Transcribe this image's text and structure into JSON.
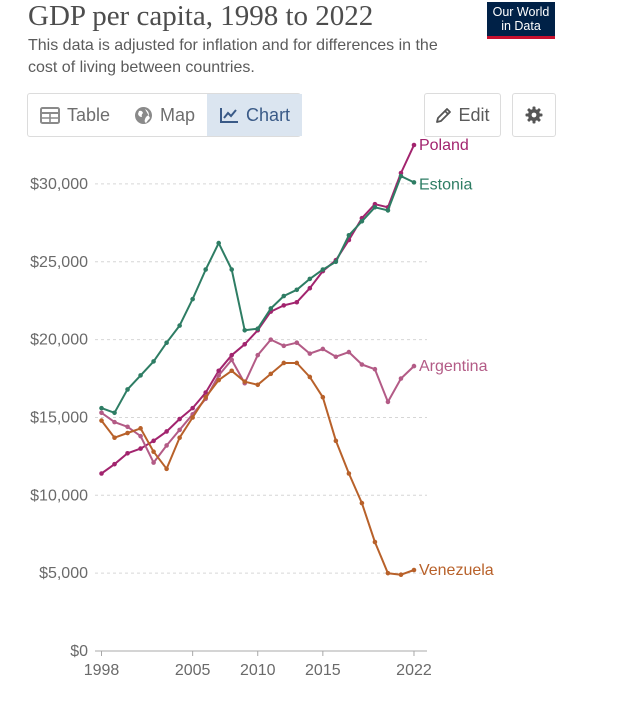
{
  "header": {
    "title": "GDP per capita, 1998 to 2022",
    "subtitle": "This data is adjusted for inflation and for differences in the cost of living between countries.",
    "logo_line1": "Our World",
    "logo_line2": "in Data"
  },
  "tabs": [
    {
      "label": "Table",
      "icon": "table-icon",
      "active": false
    },
    {
      "label": "Map",
      "icon": "globe-icon",
      "active": false
    },
    {
      "label": "Chart",
      "icon": "line-chart-icon",
      "active": true
    }
  ],
  "toolbar": {
    "edit_label": "Edit",
    "settings_icon": "gear-icon"
  },
  "chart_data": {
    "type": "line",
    "title": "GDP per capita, 1998 to 2022",
    "xlabel": "",
    "ylabel": "",
    "xlim": [
      1997.5,
      2023
    ],
    "ylim": [
      0,
      32500
    ],
    "x_ticks": [
      1998,
      2005,
      2010,
      2015,
      2022
    ],
    "y_ticks": [
      0,
      5000,
      10000,
      15000,
      20000,
      25000,
      30000
    ],
    "y_tick_labels": [
      "$0",
      "$5,000",
      "$10,000",
      "$15,000",
      "$20,000",
      "$25,000",
      "$30,000"
    ],
    "grid": "horizontal dotted",
    "legend": "labels at line ends",
    "x": [
      1998,
      1999,
      2000,
      2001,
      2002,
      2003,
      2004,
      2005,
      2006,
      2007,
      2008,
      2009,
      2010,
      2011,
      2012,
      2013,
      2014,
      2015,
      2016,
      2017,
      2018,
      2019,
      2020,
      2021,
      2022
    ],
    "series": [
      {
        "name": "Poland",
        "color": "#a2246e",
        "values": [
          11400,
          12000,
          12700,
          13000,
          13500,
          14100,
          14900,
          15600,
          16600,
          18000,
          19000,
          19700,
          20600,
          21800,
          22200,
          22400,
          23300,
          24400,
          25100,
          26400,
          27800,
          28700,
          28500,
          30700,
          32500
        ]
      },
      {
        "name": "Estonia",
        "color": "#2e7d64",
        "values": [
          15600,
          15300,
          16800,
          17700,
          18600,
          19800,
          20900,
          22600,
          24500,
          26200,
          24500,
          20600,
          20700,
          22000,
          22800,
          23200,
          23900,
          24500,
          25000,
          26700,
          27600,
          28500,
          28300,
          30500,
          30100
        ]
      },
      {
        "name": "Argentina",
        "color": "#b35b86",
        "values": [
          15300,
          14700,
          14400,
          13800,
          12100,
          13200,
          14200,
          15200,
          16200,
          17700,
          18700,
          17200,
          19000,
          20000,
          19600,
          19800,
          19100,
          19400,
          18900,
          19200,
          18400,
          18100,
          16000,
          17500,
          18300
        ]
      },
      {
        "name": "Venezuela",
        "color": "#b8612a",
        "values": [
          14800,
          13700,
          14000,
          14300,
          12800,
          11700,
          13700,
          15000,
          16300,
          17400,
          18000,
          17300,
          17100,
          17800,
          18500,
          18500,
          17600,
          16300,
          13500,
          11400,
          9500,
          7000,
          5000,
          4900,
          5200
        ]
      }
    ]
  }
}
